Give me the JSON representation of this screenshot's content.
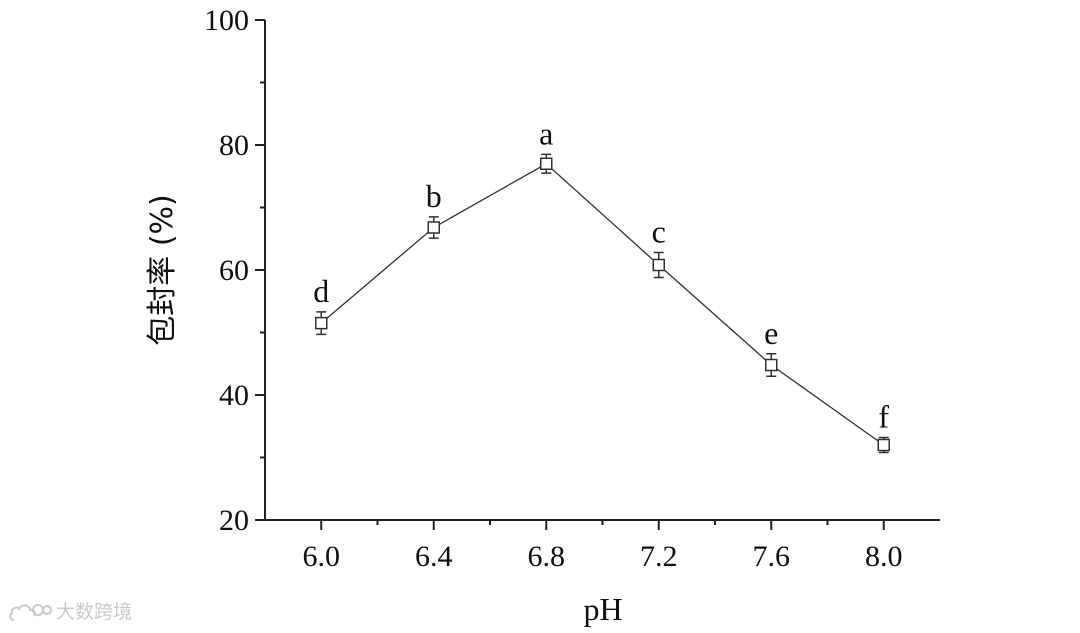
{
  "chart_data": {
    "type": "line",
    "x_label": "pH",
    "y_label": "包封率 (%)",
    "x_ticks": [
      "6.0",
      "6.4",
      "6.8",
      "7.2",
      "7.6",
      "8.0"
    ],
    "y_ticks": [
      "20",
      "40",
      "60",
      "80",
      "100"
    ],
    "xlim": [
      5.8,
      8.2
    ],
    "ylim": [
      20,
      100
    ],
    "grid": false,
    "marker": "open-square",
    "series": [
      {
        "x": [
          6.0,
          6.4,
          6.8,
          7.2,
          7.6,
          8.0
        ],
        "y": [
          51.5,
          66.8,
          77.0,
          60.8,
          44.8,
          32.0
        ],
        "error": [
          1.8,
          1.7,
          1.5,
          2.0,
          1.8,
          1.2
        ],
        "labels": [
          "d",
          "b",
          "a",
          "c",
          "e",
          "f"
        ]
      }
    ]
  },
  "watermark": {
    "text": "大数跨境",
    "icon": "cloud-logo-icon"
  }
}
